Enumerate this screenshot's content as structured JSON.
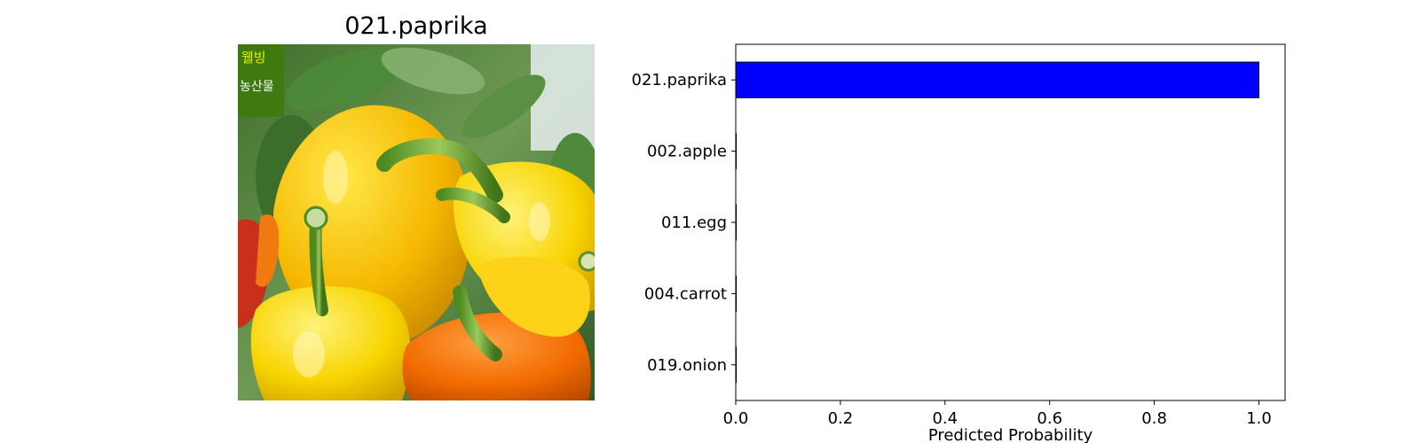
{
  "image_panel": {
    "title": "021.paprika",
    "image_label": "yellow and orange paprika peppers photo",
    "watermark_lines": [
      "웰빙",
      "농산물"
    ]
  },
  "chart_data": {
    "type": "bar",
    "orientation": "horizontal",
    "categories": [
      "021.paprika",
      "002.apple",
      "011.egg",
      "004.carrot",
      "019.onion"
    ],
    "values": [
      1.0,
      0.0,
      0.0,
      0.0,
      0.0
    ],
    "xlabel": "Predicted Probability",
    "ylabel": "",
    "xlim": [
      0,
      1.05
    ],
    "xticks": [
      0.0,
      0.2,
      0.4,
      0.6,
      0.8,
      1.0
    ],
    "xtick_labels": [
      "0.0",
      "0.2",
      "0.4",
      "0.6",
      "0.8",
      "1.0"
    ],
    "bar_color": "#0000ff",
    "grid": false
  }
}
